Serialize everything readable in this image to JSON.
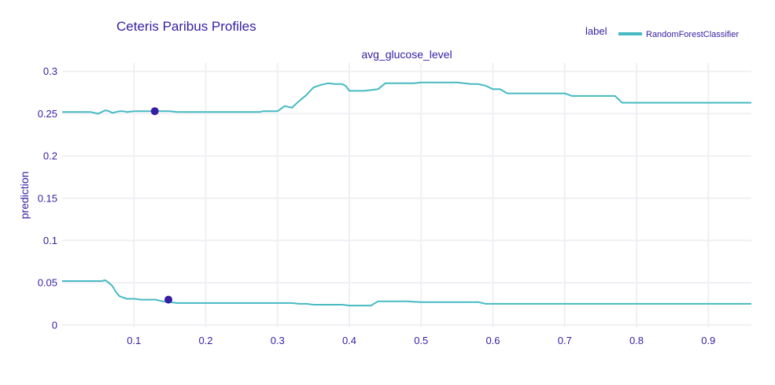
{
  "colors": {
    "line": "#46bac2",
    "marker": "#371ea3",
    "text": "#371ea3",
    "grid": "#f0f0f4",
    "background": "#ffffff"
  },
  "chart_data": {
    "type": "line",
    "title": "Ceteris Paribus Profiles",
    "subplot_title": "avg_glucose_level",
    "xlabel": "",
    "ylabel": "prediction",
    "xlim": [
      0,
      0.96
    ],
    "ylim": [
      -0.003,
      0.31
    ],
    "x_ticks": [
      0.1,
      0.2,
      0.3,
      0.4,
      0.5,
      0.6,
      0.7,
      0.8,
      0.9
    ],
    "x_tick_labels": [
      "0.1",
      "0.2",
      "0.3",
      "0.4",
      "0.5",
      "0.6",
      "0.7",
      "0.8",
      "0.9"
    ],
    "y_ticks": [
      0,
      0.05,
      0.1,
      0.15,
      0.2,
      0.25,
      0.3
    ],
    "y_tick_labels": [
      "0",
      "0.05",
      "0.1",
      "0.15",
      "0.2",
      "0.25",
      "0.3"
    ],
    "grid": true,
    "legend": {
      "title": "label",
      "placement": "top-right",
      "entries": [
        "RandomForestClassifier"
      ]
    },
    "series": [
      {
        "name": "RandomForestClassifier",
        "x": [
          0,
          0.01,
          0.02,
          0.03,
          0.04,
          0.05,
          0.055,
          0.06,
          0.065,
          0.07,
          0.075,
          0.08,
          0.085,
          0.09,
          0.1,
          0.11,
          0.12,
          0.13,
          0.14,
          0.15,
          0.16,
          0.2,
          0.25,
          0.27,
          0.275,
          0.28,
          0.29,
          0.3,
          0.305,
          0.31,
          0.32,
          0.33,
          0.34,
          0.35,
          0.36,
          0.365,
          0.37,
          0.38,
          0.39,
          0.395,
          0.4,
          0.42,
          0.43,
          0.44,
          0.45,
          0.46,
          0.48,
          0.49,
          0.5,
          0.51,
          0.54,
          0.55,
          0.56,
          0.57,
          0.58,
          0.59,
          0.6,
          0.61,
          0.62,
          0.65,
          0.7,
          0.71,
          0.72,
          0.75,
          0.77,
          0.78,
          0.8,
          0.85,
          0.9,
          0.96
        ],
        "values": [
          0.252,
          0.252,
          0.252,
          0.252,
          0.252,
          0.25,
          0.252,
          0.254,
          0.253,
          0.251,
          0.252,
          0.253,
          0.253,
          0.252,
          0.253,
          0.253,
          0.253,
          0.253,
          0.253,
          0.253,
          0.252,
          0.252,
          0.252,
          0.252,
          0.252,
          0.253,
          0.253,
          0.253,
          0.256,
          0.259,
          0.257,
          0.265,
          0.272,
          0.281,
          0.284,
          0.285,
          0.286,
          0.285,
          0.285,
          0.283,
          0.277,
          0.277,
          0.278,
          0.279,
          0.286,
          0.286,
          0.286,
          0.286,
          0.287,
          0.287,
          0.287,
          0.287,
          0.286,
          0.285,
          0.285,
          0.283,
          0.279,
          0.279,
          0.274,
          0.274,
          0.274,
          0.271,
          0.271,
          0.271,
          0.271,
          0.263,
          0.263,
          0.263,
          0.263,
          0.263
        ]
      },
      {
        "name": "RandomForestClassifier",
        "x": [
          0,
          0.01,
          0.02,
          0.03,
          0.04,
          0.05,
          0.055,
          0.06,
          0.065,
          0.07,
          0.075,
          0.08,
          0.09,
          0.1,
          0.11,
          0.12,
          0.13,
          0.14,
          0.15,
          0.16,
          0.2,
          0.25,
          0.3,
          0.31,
          0.32,
          0.33,
          0.34,
          0.35,
          0.36,
          0.38,
          0.39,
          0.4,
          0.41,
          0.42,
          0.43,
          0.44,
          0.45,
          0.48,
          0.5,
          0.52,
          0.55,
          0.58,
          0.59,
          0.6,
          0.65,
          0.7,
          0.75,
          0.8,
          0.85,
          0.9,
          0.96
        ],
        "values": [
          0.052,
          0.052,
          0.052,
          0.052,
          0.052,
          0.052,
          0.052,
          0.053,
          0.05,
          0.046,
          0.039,
          0.034,
          0.031,
          0.031,
          0.03,
          0.03,
          0.03,
          0.028,
          0.027,
          0.026,
          0.026,
          0.026,
          0.026,
          0.026,
          0.026,
          0.025,
          0.025,
          0.024,
          0.024,
          0.024,
          0.024,
          0.023,
          0.023,
          0.023,
          0.023,
          0.028,
          0.028,
          0.028,
          0.027,
          0.027,
          0.027,
          0.027,
          0.025,
          0.025,
          0.025,
          0.025,
          0.025,
          0.025,
          0.025,
          0.025,
          0.025
        ]
      }
    ],
    "observations": [
      {
        "x": 0.129,
        "y": 0.253
      },
      {
        "x": 0.148,
        "y": 0.03
      }
    ]
  }
}
